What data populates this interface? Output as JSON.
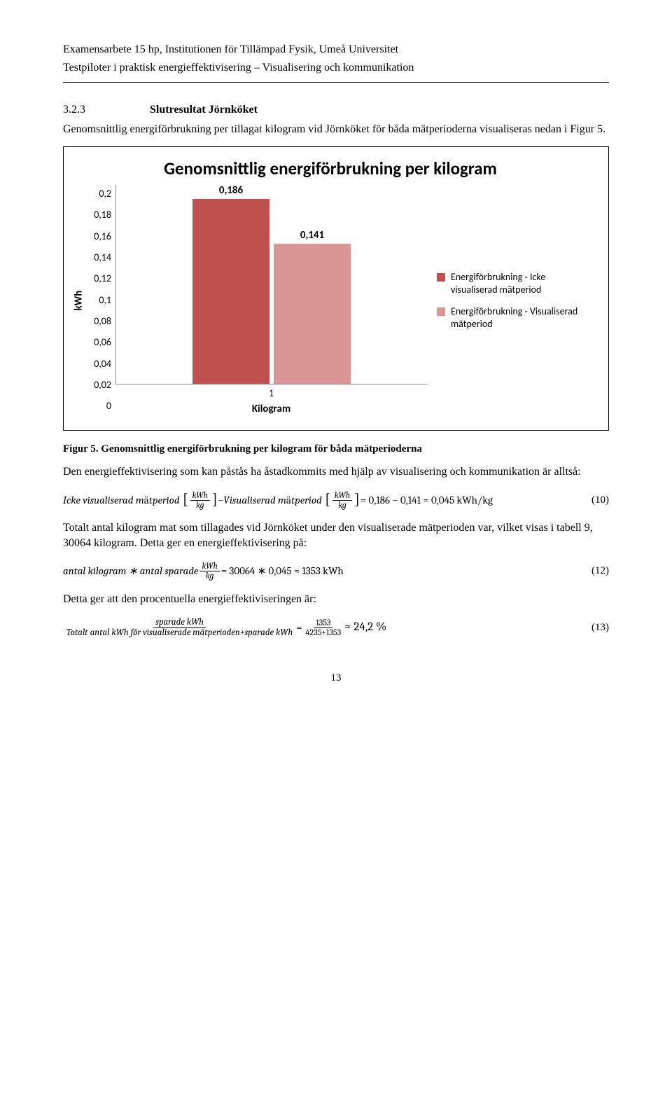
{
  "header": {
    "line1": "Examensarbete 15 hp, Institutionen för Tillämpad Fysik, Umeå Universitet",
    "line2": "Testpiloter i praktisk energieffektivisering – Visualisering och kommunikation"
  },
  "section": {
    "num": "3.2.3",
    "title": "Slutresultat Jörnköket",
    "intro": "Genomsnittlig energiförbrukning per tillagat kilogram vid Jörnköket för båda mätperioderna visualiseras nedan i Figur 5."
  },
  "chart": {
    "type": "bar",
    "title": "Genomsnittlig energiförbrukning per kilogram",
    "ylabel": "kWh",
    "xlabel": "Kilogram",
    "x_tick": "1",
    "ylim": [
      0,
      0.2
    ],
    "ytick_step": 0.02,
    "y_ticks": [
      "0,2",
      "0,18",
      "0,16",
      "0,14",
      "0,12",
      "0,1",
      "0,08",
      "0,06",
      "0,04",
      "0,02",
      "0"
    ],
    "bars": [
      {
        "label": "0,186",
        "value": 0.186,
        "color": "#c0504d"
      },
      {
        "label": "0,141",
        "value": 0.141,
        "color": "#d99694"
      }
    ],
    "legend": [
      {
        "color": "#c0504d",
        "text": "Energiförbrukning - Icke visualiserad mätperiod"
      },
      {
        "color": "#d99694",
        "text": "Energiförbrukning - Visualiserad mätperiod"
      }
    ],
    "axis_color": "#888888",
    "background_color": "#ffffff",
    "title_fontsize": 25,
    "label_fontsize": 15,
    "tick_fontsize": 14
  },
  "fig_caption": "Figur 5. Genomsnittlig energiförbrukning per kilogram för båda mätperioderna",
  "para1": "Den energieffektivisering som kan påstås ha åstadkommits med hjälp av visualisering och kommunikation är alltså:",
  "eq10": {
    "t1": "Icke visualiserad m",
    "t1b": "ä",
    "t1c": "tperiod",
    "frac_num": "kWh",
    "frac_den": "kg",
    "minus": " − ",
    "t2": "Visualiserad m",
    "t2b": "ä",
    "t2c": "tperiod",
    "rhs": " = 0,186 − 0,141 = 0,045 kWh/kg",
    "num": "(10)"
  },
  "para2": "Totalt antal kilogram mat som tillagades vid Jörnköket under den visualiserade mätperioden var, vilket visas i tabell 9, 30064 kilogram. Detta ger en energieffektivisering på:",
  "eq12": {
    "lhs1": "antal kilogram ∗ antal sparade ",
    "frac_num": "kWh",
    "frac_den": "kg",
    "rhs": " = 30064 ∗ 0,045 ≈ 1353 kWh",
    "num": "(12)"
  },
  "para3": "Detta ger att den procentuella energieffektiviseringen är:",
  "eq13": {
    "big_num": "sparade kWh",
    "big_den": "Totalt antal kWh för visualiserade mätperioden+sparade kWh",
    "eqs": " = ",
    "small_num": "1353",
    "small_den": "4235+1353",
    "approx": " ≈ 24,2 %",
    "num": "(13)"
  },
  "page_num": "13"
}
